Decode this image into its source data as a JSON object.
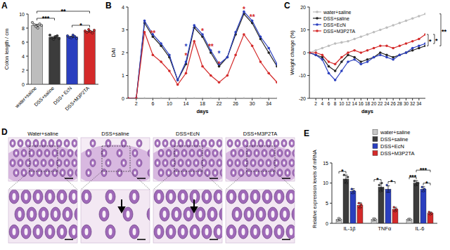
{
  "chart_data": [
    {
      "type": "bar",
      "title": "A",
      "ylabel": "Colon length / cm",
      "categories": [
        "water+saline",
        "DSS+saline",
        "DSS+ EcN",
        "DSS+M3P2TA"
      ],
      "values": [
        8.4,
        6.7,
        6.75,
        7.55
      ],
      "errors": [
        0.15,
        0.12,
        0.1,
        0.1
      ],
      "points": [
        [
          8.8,
          8.5,
          8.2,
          8.0,
          8.6,
          8.4
        ],
        [
          7.0,
          6.6,
          6.4,
          6.8,
          6.9,
          6.5
        ],
        [
          6.9,
          6.7,
          6.6,
          7.0,
          6.8,
          6.5
        ],
        [
          7.6,
          7.4,
          7.8,
          7.5,
          7.3,
          7.7
        ]
      ],
      "colors": [
        "#bdbdbd",
        "#3c3c3c",
        "#2a3fbf",
        "#d42a2a"
      ],
      "ylim": [
        0,
        10
      ],
      "yticks": [
        0,
        2,
        4,
        6,
        8,
        10
      ],
      "significance": [
        {
          "from": 0,
          "to": 1,
          "label": "***"
        },
        {
          "from": 2,
          "to": 3,
          "label": "*"
        },
        {
          "from": 0,
          "to": 3,
          "label": "**"
        }
      ]
    },
    {
      "type": "line",
      "title": "B",
      "xlabel": "days",
      "ylabel": "DAI",
      "marker": "circle",
      "x": [
        0,
        2,
        4,
        6,
        8,
        10,
        12,
        14,
        16,
        18,
        20,
        22,
        24,
        26,
        28,
        30,
        32,
        34,
        36
      ],
      "xlim": [
        0,
        36
      ],
      "xticks": [
        2,
        6,
        10,
        14,
        18,
        22,
        26,
        30,
        34
      ],
      "ylim": [
        0,
        4
      ],
      "yticks": [
        0,
        1,
        2,
        3,
        4
      ],
      "series": [
        {
          "color": "#bdbdbd",
          "values": [
            0,
            0,
            0,
            0,
            0,
            0,
            0,
            0,
            0,
            0,
            0,
            0,
            0,
            0,
            0,
            0,
            0,
            0,
            0
          ]
        },
        {
          "color": "#222222",
          "values": [
            0,
            0,
            3.3,
            2.7,
            2.3,
            1.8,
            0.8,
            1.5,
            3.1,
            2.7,
            2.0,
            1.4,
            1.8,
            2.8,
            3.7,
            3.3,
            2.6,
            2.0,
            1.4
          ]
        },
        {
          "color": "#2a3fbf",
          "values": [
            0,
            0,
            3.4,
            2.8,
            2.4,
            1.9,
            0.8,
            1.6,
            3.2,
            2.8,
            2.1,
            1.5,
            1.8,
            2.9,
            3.8,
            3.4,
            2.7,
            2.2,
            1.5
          ]
        },
        {
          "color": "#d42a2a",
          "values": [
            0,
            0,
            2.9,
            1.9,
            1.6,
            1.2,
            0.6,
            1.1,
            2.5,
            1.4,
            1.0,
            0.7,
            1.0,
            1.9,
            2.8,
            2.3,
            1.6,
            1.1,
            0.7
          ]
        }
      ],
      "annotations": [
        {
          "text": "**",
          "x": 6,
          "y": 2.9,
          "color": "#d42a2a"
        },
        {
          "text": "*",
          "x": 14,
          "y": 2.3,
          "color": "#2a3fbf"
        },
        {
          "text": "*",
          "x": 14,
          "y": 1.9,
          "color": "#d42a2a"
        },
        {
          "text": "*",
          "x": 18,
          "y": 3.0,
          "color": "#d42a2a"
        },
        {
          "text": "**",
          "x": 20,
          "y": 2.3,
          "color": "#d42a2a"
        },
        {
          "text": "*",
          "x": 22,
          "y": 2.0,
          "color": "#2a3fbf"
        },
        {
          "text": "*",
          "x": 22,
          "y": 1.55,
          "color": "#d42a2a"
        },
        {
          "text": "*",
          "x": 28,
          "y": 3.95,
          "color": "#d42a2a"
        },
        {
          "text": "**",
          "x": 30,
          "y": 3.6,
          "color": "#d42a2a"
        }
      ]
    },
    {
      "type": "line",
      "title": "C",
      "xlabel": "days",
      "ylabel": "Weight change (%)",
      "marker": "circle",
      "legend": "top-left",
      "x": [
        0,
        2,
        4,
        6,
        8,
        10,
        12,
        14,
        16,
        18,
        20,
        22,
        24,
        26,
        28,
        30,
        32,
        34,
        36
      ],
      "xlim": [
        0,
        36
      ],
      "xticks": [
        2,
        4,
        6,
        8,
        10,
        12,
        14,
        16,
        18,
        20,
        22,
        24,
        26,
        28,
        30,
        32,
        34
      ],
      "ylim": [
        -20,
        20
      ],
      "yticks": [
        -20,
        -10,
        0,
        10,
        20
      ],
      "series": [
        {
          "name": "water+saline",
          "color": "#bdbdbd",
          "values": [
            0,
            1,
            2,
            3,
            4,
            4.5,
            5,
            6,
            7,
            8,
            9,
            10,
            11,
            12,
            13,
            14,
            15,
            16,
            17
          ]
        },
        {
          "name": "DSS+saline",
          "color": "#222222",
          "values": [
            0,
            -1,
            -2,
            -6,
            -8,
            -4,
            -1,
            -2,
            -4,
            -3,
            -2,
            0,
            -1,
            -2,
            -1,
            0,
            1,
            2,
            3
          ]
        },
        {
          "name": "DSS+EcN",
          "color": "#2a3fbf",
          "values": [
            0,
            -1,
            -3,
            -9,
            -12,
            -8,
            -4,
            -3,
            -5,
            -4,
            -2,
            -1,
            -2,
            -3,
            -1,
            0,
            2,
            3,
            4
          ]
        },
        {
          "name": "DSS+M3P2TA",
          "color": "#d42a2a",
          "values": [
            0,
            0,
            -1,
            -4,
            -5,
            -2,
            0,
            1,
            0,
            1,
            2,
            3,
            3,
            2,
            3,
            4,
            5,
            6,
            8
          ]
        }
      ],
      "significance": [
        {
          "from": 3,
          "to": 1,
          "label": "*"
        },
        {
          "from": 3,
          "to": 2,
          "label": "*"
        },
        {
          "from": 0,
          "to": 1,
          "label": "**"
        }
      ]
    },
    {
      "type": "image",
      "title": "D",
      "categories": [
        "Water+saline",
        "DSS+saline",
        "DSS+EcN",
        "DSS+M3P2TA"
      ]
    },
    {
      "type": "bar",
      "title": "E",
      "ylabel": "Relative expression levels of mRNA",
      "legend": "top-right",
      "categories": [
        "IL-1β",
        "TNFα",
        "IL-6"
      ],
      "ylim": [
        0,
        15
      ],
      "yticks": [
        0,
        5,
        10,
        15
      ],
      "series": [
        {
          "name": "water+saline",
          "color": "#c8c8c8",
          "values": [
            1.0,
            1.0,
            1.0
          ],
          "errors": [
            0.3,
            0.3,
            0.2
          ],
          "points": [
            [
              0.7,
              1.3,
              1.0
            ],
            [
              0.8,
              1.2,
              1.0
            ],
            [
              0.9,
              1.1,
              1.0
            ]
          ]
        },
        {
          "name": "DSS+saline",
          "color": "#3c3c3c",
          "values": [
            11.0,
            9.0,
            10.0
          ],
          "errors": [
            1.0,
            1.0,
            0.6
          ],
          "points": [
            [
              12.0,
              10.5,
              10.0,
              11.5
            ],
            [
              9.5,
              8.0,
              10.0,
              8.5
            ],
            [
              10.5,
              9.5,
              10.0,
              10.0
            ]
          ]
        },
        {
          "name": "DSS+EcN",
          "color": "#2a3fbf",
          "values": [
            8.0,
            8.5,
            8.5
          ],
          "errors": [
            0.6,
            0.8,
            0.6
          ],
          "points": [
            [
              8.5,
              7.5,
              8.0
            ],
            [
              9.5,
              8.0,
              8.0
            ],
            [
              9.0,
              8.0,
              8.5
            ]
          ]
        },
        {
          "name": "DSS+M3P2TA",
          "color": "#d42a2a",
          "values": [
            4.5,
            3.5,
            2.5
          ],
          "errors": [
            0.6,
            0.5,
            0.3
          ],
          "points": [
            [
              5.0,
              3.8,
              4.7
            ],
            [
              4.0,
              3.0,
              3.5
            ],
            [
              2.8,
              2.2,
              2.5
            ]
          ]
        }
      ],
      "significance": [
        {
          "category": 0,
          "from": 0,
          "to": 1,
          "label": "*"
        },
        {
          "category": 1,
          "from": 0,
          "to": 1,
          "label": "*"
        },
        {
          "category": 1,
          "from": 2,
          "to": 3,
          "label": "*"
        },
        {
          "category": 2,
          "from": 0,
          "to": 1,
          "label": "***"
        },
        {
          "category": 2,
          "from": 2,
          "to": 3,
          "label": "*"
        },
        {
          "category": 2,
          "from": 1,
          "to": 3,
          "label": "***"
        }
      ]
    }
  ]
}
